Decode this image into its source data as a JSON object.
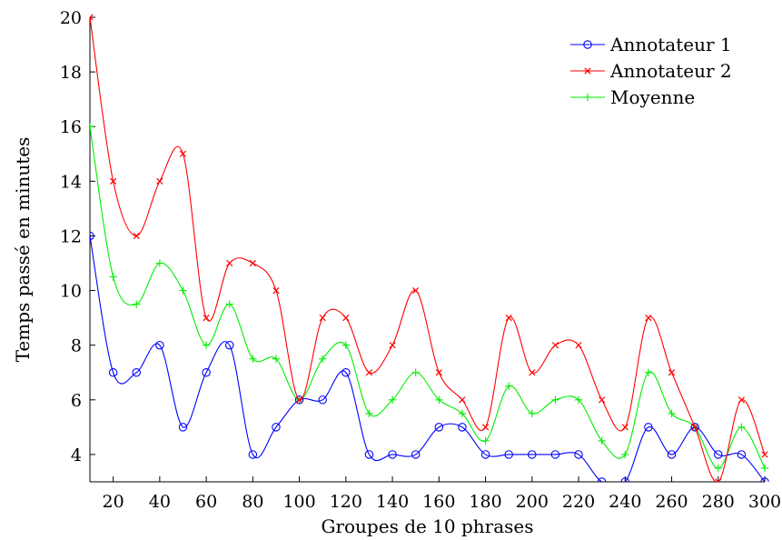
{
  "chart_data": {
    "type": "line",
    "xlabel": "Groupes de 10 phrases",
    "ylabel": "Temps passé en minutes",
    "xlim": [
      10,
      300
    ],
    "ylim": [
      3,
      20
    ],
    "xticks": [
      20,
      40,
      60,
      80,
      100,
      120,
      140,
      160,
      180,
      200,
      220,
      240,
      260,
      280,
      300
    ],
    "yticks": [
      4,
      6,
      8,
      10,
      12,
      14,
      16,
      18,
      20
    ],
    "legend_position": "top-right",
    "x": [
      10,
      20,
      30,
      40,
      50,
      60,
      70,
      80,
      90,
      100,
      110,
      120,
      130,
      140,
      150,
      160,
      170,
      180,
      190,
      200,
      210,
      220,
      230,
      240,
      250,
      260,
      270,
      280,
      290,
      300
    ],
    "series": [
      {
        "name": "Annotateur 1",
        "color": "#0000ff",
        "marker": "circle",
        "values": [
          12,
          7,
          7,
          8,
          5,
          7,
          8,
          4,
          5,
          6,
          6,
          7,
          4,
          4,
          4,
          5,
          5,
          4,
          4,
          4,
          4,
          4,
          3,
          3,
          5,
          4,
          5,
          4,
          4,
          3
        ]
      },
      {
        "name": "Annotateur 2",
        "color": "#ff0000",
        "marker": "cross",
        "values": [
          20,
          14,
          12,
          14,
          15,
          9,
          11,
          11,
          10,
          6,
          9,
          9,
          7,
          8,
          10,
          7,
          6,
          5,
          9,
          7,
          8,
          8,
          6,
          5,
          9,
          7,
          5,
          3,
          6,
          4
        ]
      },
      {
        "name": "Moyenne",
        "color": "#00ee00",
        "marker": "plus",
        "values": [
          16,
          10.5,
          9.5,
          11,
          10,
          8,
          9.5,
          7.5,
          7.5,
          6,
          7.5,
          8,
          5.5,
          6,
          7,
          6,
          5.5,
          4.5,
          6.5,
          5.5,
          6,
          6,
          4.5,
          4,
          7,
          5.5,
          5,
          3.5,
          5,
          3.5
        ]
      }
    ]
  }
}
